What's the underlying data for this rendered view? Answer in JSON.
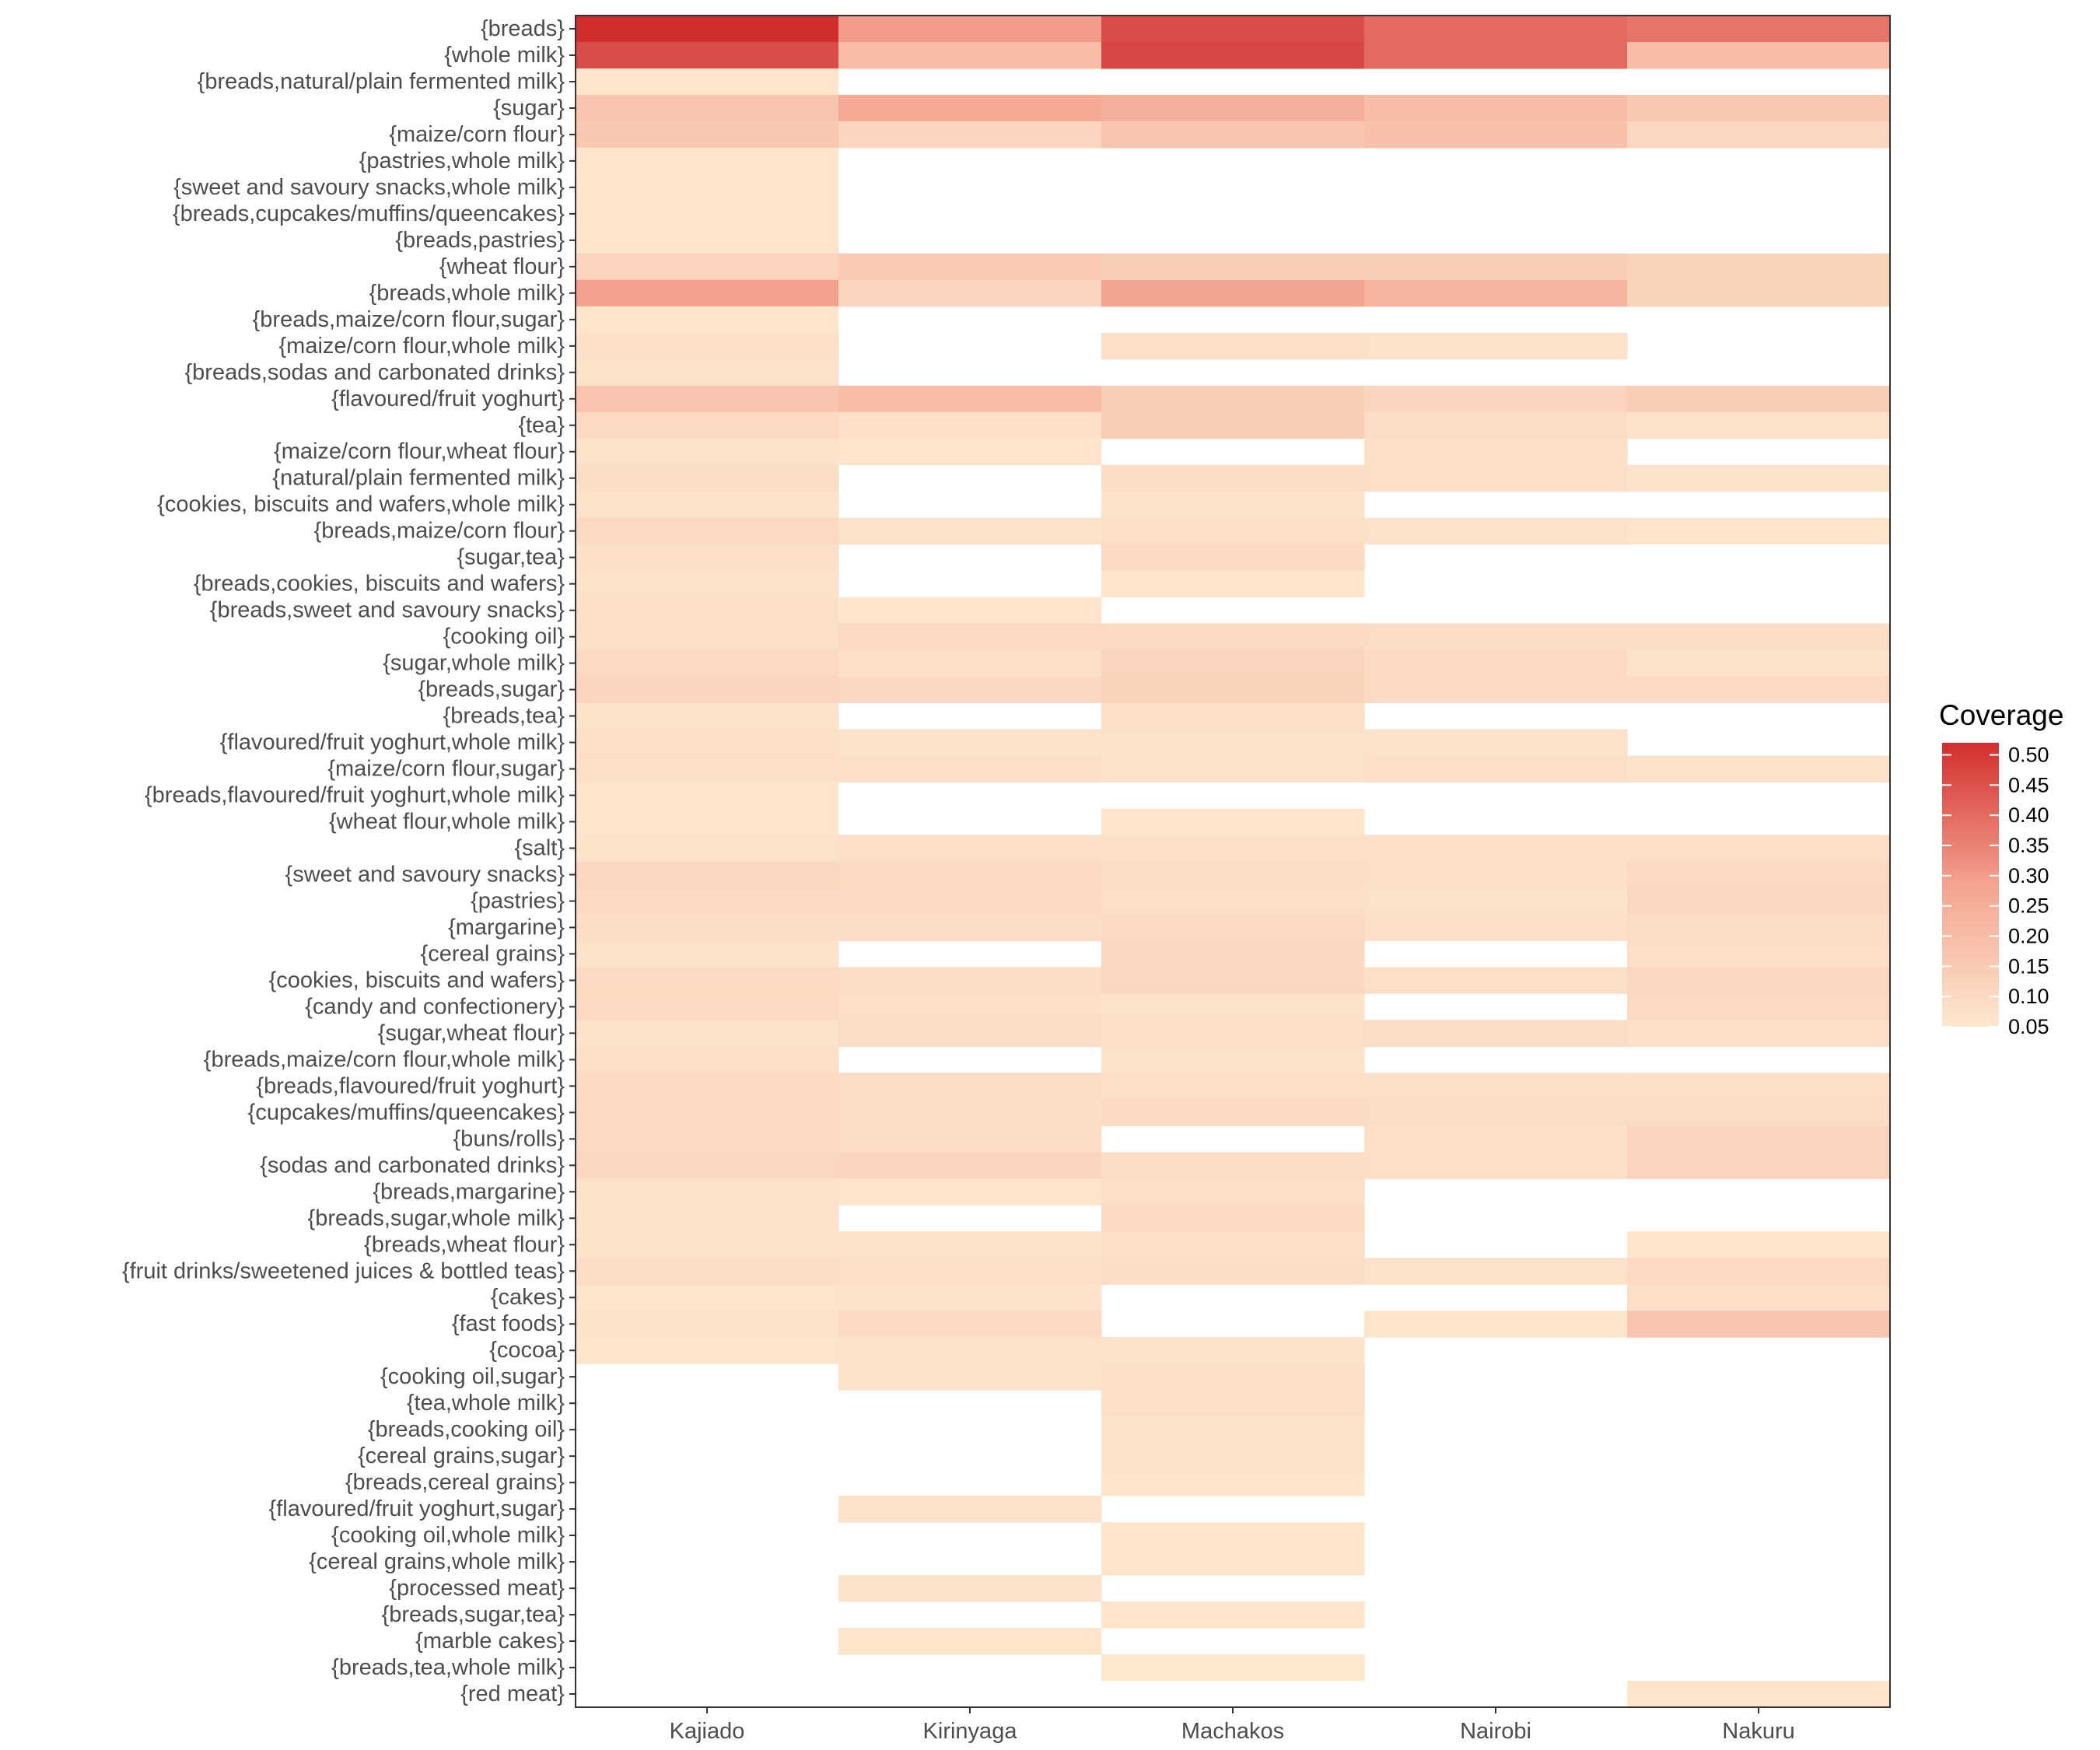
{
  "chart_data": {
    "type": "heatmap",
    "title": "",
    "xlabel": "",
    "ylabel": "",
    "columns": [
      "Kajiado",
      "Kirinyaga",
      "Machakos",
      "Nairobi",
      "Nakuru"
    ],
    "rows": [
      "{breads}",
      "{whole milk}",
      "{breads,natural/plain fermented milk}",
      "{sugar}",
      "{maize/corn flour}",
      "{pastries,whole milk}",
      "{sweet and savoury snacks,whole milk}",
      "{breads,cupcakes/muffins/queencakes}",
      "{breads,pastries}",
      "{wheat flour}",
      "{breads,whole milk}",
      "{breads,maize/corn flour,sugar}",
      "{maize/corn flour,whole milk}",
      "{breads,sodas and carbonated drinks}",
      "{flavoured/fruit yoghurt}",
      "{tea}",
      "{maize/corn flour,wheat flour}",
      "{natural/plain fermented milk}",
      "{cookies, biscuits and wafers,whole milk}",
      "{breads,maize/corn flour}",
      "{sugar,tea}",
      "{breads,cookies, biscuits and wafers}",
      "{breads,sweet and savoury snacks}",
      "{cooking oil}",
      "{sugar,whole milk}",
      "{breads,sugar}",
      "{breads,tea}",
      "{flavoured/fruit yoghurt,whole milk}",
      "{maize/corn flour,sugar}",
      "{breads,flavoured/fruit yoghurt,whole milk}",
      "{wheat flour,whole milk}",
      "{salt}",
      "{sweet and savoury snacks}",
      "{pastries}",
      "{margarine}",
      "{cereal grains}",
      "{cookies, biscuits and wafers}",
      "{candy and confectionery}",
      "{sugar,wheat flour}",
      "{breads,maize/corn flour,whole milk}",
      "{breads,flavoured/fruit yoghurt}",
      "{cupcakes/muffins/queencakes}",
      "{buns/rolls}",
      "{sodas and carbonated drinks}",
      "{breads,margarine}",
      "{breads,sugar,whole milk}",
      "{breads,wheat flour}",
      "{fruit drinks/sweetened juices & bottled teas}",
      "{cakes}",
      "{fast foods}",
      "{cocoa}",
      "{cooking oil,sugar}",
      "{tea,whole milk}",
      "{breads,cooking oil}",
      "{cereal grains,sugar}",
      "{breads,cereal grains}",
      "{flavoured/fruit yoghurt,sugar}",
      "{cooking oil,whole milk}",
      "{cereal grains,whole milk}",
      "{processed meat}",
      "{breads,sugar,tea}",
      "{marble cakes}",
      "{breads,tea,whole milk}",
      "{red meat}"
    ],
    "values": [
      [
        0.52,
        0.3,
        0.46,
        0.4,
        0.38
      ],
      [
        0.46,
        0.2,
        0.47,
        0.4,
        0.2
      ],
      [
        0.06,
        null,
        null,
        null,
        null
      ],
      [
        0.17,
        0.27,
        0.25,
        0.2,
        0.16
      ],
      [
        0.16,
        0.12,
        0.17,
        0.19,
        0.11
      ],
      [
        0.06,
        null,
        null,
        null,
        null
      ],
      [
        0.06,
        null,
        null,
        null,
        null
      ],
      [
        0.06,
        null,
        null,
        null,
        null
      ],
      [
        0.06,
        null,
        null,
        null,
        null
      ],
      [
        0.12,
        0.15,
        0.14,
        0.14,
        0.13
      ],
      [
        0.29,
        0.12,
        0.28,
        0.23,
        0.13
      ],
      [
        0.06,
        null,
        null,
        null,
        null
      ],
      [
        0.08,
        null,
        0.08,
        0.07,
        null
      ],
      [
        0.07,
        null,
        null,
        null,
        null
      ],
      [
        0.17,
        0.2,
        0.14,
        0.12,
        0.14
      ],
      [
        0.1,
        0.08,
        0.14,
        0.09,
        0.07
      ],
      [
        0.07,
        0.06,
        null,
        0.08,
        null
      ],
      [
        0.09,
        null,
        0.09,
        0.08,
        0.07
      ],
      [
        0.07,
        null,
        0.07,
        null,
        null
      ],
      [
        0.1,
        0.07,
        0.08,
        0.07,
        0.06
      ],
      [
        0.08,
        null,
        0.1,
        null,
        null
      ],
      [
        0.07,
        null,
        0.06,
        null,
        null
      ],
      [
        0.08,
        0.06,
        null,
        null,
        null
      ],
      [
        0.08,
        0.1,
        0.1,
        0.09,
        0.09
      ],
      [
        0.1,
        0.08,
        0.12,
        0.1,
        0.07
      ],
      [
        0.12,
        0.11,
        0.13,
        0.1,
        0.1
      ],
      [
        0.07,
        null,
        0.08,
        null,
        null
      ],
      [
        0.08,
        0.07,
        0.07,
        0.07,
        null
      ],
      [
        0.08,
        0.08,
        0.07,
        0.08,
        0.07
      ],
      [
        0.06,
        null,
        null,
        null,
        null
      ],
      [
        0.06,
        null,
        0.06,
        null,
        null
      ],
      [
        0.07,
        0.08,
        0.08,
        0.08,
        0.08
      ],
      [
        0.11,
        0.1,
        0.09,
        0.08,
        0.1
      ],
      [
        0.1,
        0.1,
        0.08,
        0.07,
        0.11
      ],
      [
        0.09,
        0.09,
        0.1,
        0.08,
        0.09
      ],
      [
        0.07,
        null,
        0.11,
        null,
        0.08
      ],
      [
        0.1,
        0.09,
        0.11,
        0.08,
        0.11
      ],
      [
        0.1,
        0.08,
        0.07,
        null,
        0.1
      ],
      [
        0.07,
        0.09,
        0.08,
        0.09,
        0.08
      ],
      [
        0.08,
        null,
        0.07,
        null,
        null
      ],
      [
        0.1,
        0.09,
        0.08,
        0.08,
        0.08
      ],
      [
        0.1,
        0.09,
        0.1,
        0.09,
        0.09
      ],
      [
        0.1,
        0.09,
        null,
        0.08,
        0.12
      ],
      [
        0.11,
        0.12,
        0.09,
        0.08,
        0.12
      ],
      [
        0.07,
        0.06,
        0.08,
        null,
        null
      ],
      [
        0.07,
        null,
        0.1,
        null,
        null
      ],
      [
        0.07,
        0.07,
        0.08,
        null,
        0.06
      ],
      [
        0.09,
        0.08,
        0.09,
        0.07,
        0.1
      ],
      [
        0.06,
        0.07,
        null,
        null,
        0.08
      ],
      [
        0.07,
        0.1,
        null,
        0.06,
        0.17
      ],
      [
        0.06,
        0.07,
        0.07,
        null,
        null
      ],
      [
        null,
        0.07,
        0.08,
        null,
        null
      ],
      [
        null,
        null,
        0.08,
        null,
        null
      ],
      [
        null,
        null,
        0.07,
        null,
        null
      ],
      [
        null,
        null,
        0.07,
        null,
        null
      ],
      [
        null,
        null,
        0.06,
        null,
        null
      ],
      [
        null,
        0.07,
        null,
        null,
        null
      ],
      [
        null,
        null,
        0.06,
        null,
        null
      ],
      [
        null,
        null,
        0.06,
        null,
        null
      ],
      [
        null,
        0.07,
        null,
        null,
        null
      ],
      [
        null,
        null,
        0.06,
        null,
        null
      ],
      [
        null,
        0.06,
        null,
        null,
        null
      ],
      [
        null,
        null,
        0.05,
        null,
        null
      ],
      [
        null,
        null,
        null,
        null,
        0.06
      ]
    ],
    "legend": {
      "title": "Coverage",
      "ticks": [
        "0.50",
        "0.45",
        "0.40",
        "0.35",
        "0.30",
        "0.25",
        "0.20",
        "0.15",
        "0.10",
        "0.05"
      ],
      "range": [
        0.05,
        0.52
      ],
      "placement": "right"
    },
    "colors": {
      "low": "#fde8cf",
      "mid": "#f4a48f",
      "high": "#d12e2e"
    }
  }
}
